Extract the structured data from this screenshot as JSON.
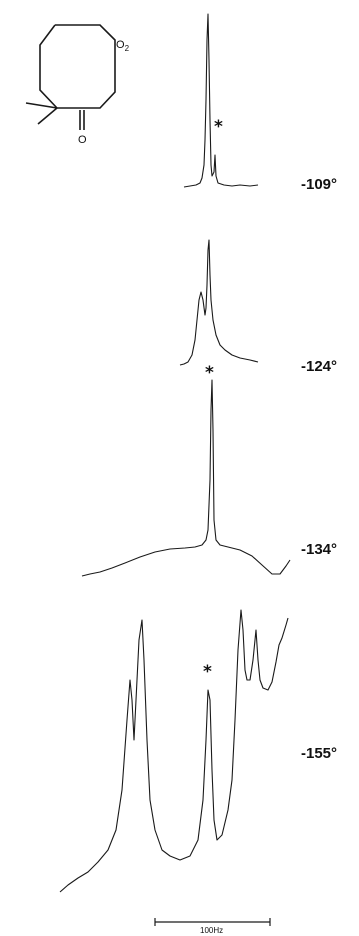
{
  "molecule": {
    "substituent_label": "O",
    "substituent_subscript": "2",
    "carbonyl_label": "O"
  },
  "spectra": [
    {
      "temperature": "-109°",
      "impurity_marker": "*"
    },
    {
      "temperature": "-124°",
      "impurity_marker": ""
    },
    {
      "temperature": "-134°",
      "impurity_marker": "*"
    },
    {
      "temperature": "-155°",
      "impurity_marker": "*"
    }
  ],
  "scale_bar": {
    "label": "100Hz"
  },
  "colors": {
    "ink": "#1a1a1a",
    "background": "#ffffff"
  }
}
